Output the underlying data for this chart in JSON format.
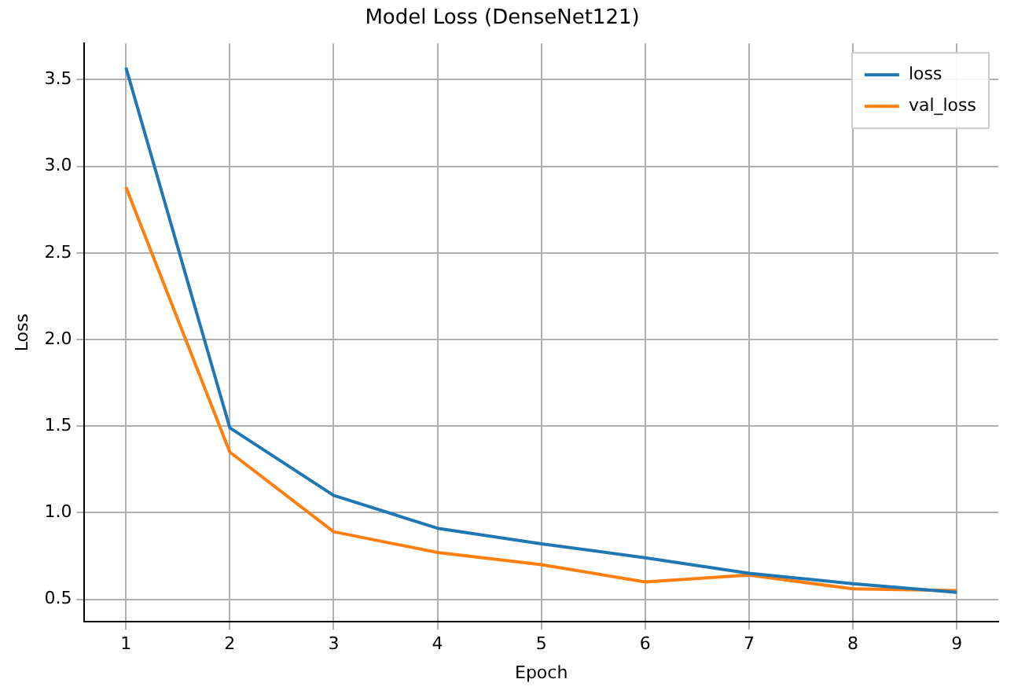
{
  "chart_data": {
    "type": "line",
    "title": "Model Loss (DenseNet121)",
    "xlabel": "Epoch",
    "ylabel": "Loss",
    "x": [
      1,
      2,
      3,
      4,
      5,
      6,
      7,
      8,
      9
    ],
    "series": [
      {
        "name": "loss",
        "color": "#1f77b4",
        "values": [
          3.57,
          1.49,
          1.1,
          0.91,
          0.82,
          0.74,
          0.65,
          0.59,
          0.54
        ]
      },
      {
        "name": "val_loss",
        "color": "#ff7f0e",
        "values": [
          2.88,
          1.35,
          0.89,
          0.77,
          0.7,
          0.6,
          0.64,
          0.56,
          0.55
        ]
      }
    ],
    "xlim": [
      0.6,
      9.4
    ],
    "xticks": [
      1,
      2,
      3,
      4,
      5,
      6,
      7,
      8,
      9
    ],
    "ylim": [
      0.37,
      3.71
    ],
    "yticks": [
      0.5,
      {
        "value": 1,
        "label": "1.0"
      },
      1.5,
      {
        "value": 2,
        "label": "2.0"
      },
      2.5,
      {
        "value": 3,
        "label": "3.0"
      },
      3.5
    ],
    "grid": true,
    "legend": "top right",
    "marker": "none",
    "line_style": "solid"
  }
}
